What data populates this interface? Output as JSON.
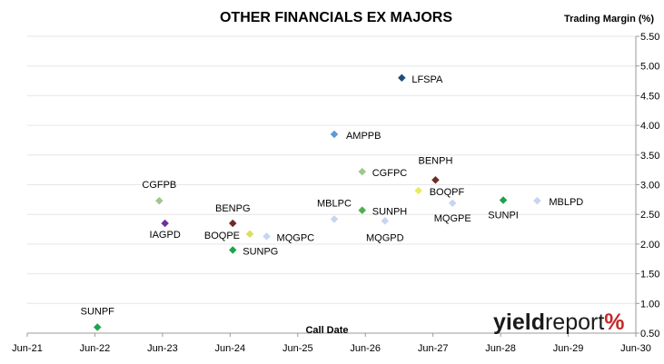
{
  "chart_data": {
    "type": "scatter",
    "title": "OTHER FINANCIALS EX MAJORS",
    "ylabel": "Trading Margin (%)",
    "xlabel": "Call Date",
    "x_ticks": [
      "Jun-21",
      "Jun-22",
      "Jun-23",
      "Jun-24",
      "Jun-25",
      "Jun-26",
      "Jun-27",
      "Jun-28",
      "Jun-29",
      "Jun-30"
    ],
    "xlim": [
      "Jun-21",
      "Jun-30"
    ],
    "ylim": [
      0.5,
      5.5
    ],
    "y_ticks": [
      "0.50",
      "1.00",
      "1.50",
      "2.00",
      "2.50",
      "3.00",
      "3.50",
      "4.00",
      "4.50",
      "5.00",
      "5.50"
    ],
    "y_axis_side": "right",
    "grid": "horizontal",
    "points": [
      {
        "label": "SUNPF",
        "x": "2022-06-15",
        "y": 0.6,
        "color": "#1fa34a"
      },
      {
        "label": "CGFPB",
        "x": "2023-05-15",
        "y": 2.73,
        "color": "#9cc98d"
      },
      {
        "label": "IAGPD",
        "x": "2023-06-15",
        "y": 2.35,
        "color": "#7030a0"
      },
      {
        "label": "BENPG",
        "x": "2024-06-15",
        "y": 2.35,
        "color": "#6b2d24"
      },
      {
        "label": "BOQPE",
        "x": "2024-09-15",
        "y": 2.17,
        "color": "#dede5a"
      },
      {
        "label": "SUNPG",
        "x": "2024-06-15",
        "y": 1.9,
        "color": "#1fa34a"
      },
      {
        "label": "MQGPC",
        "x": "2024-12-15",
        "y": 2.13,
        "color": "#c5d6ef"
      },
      {
        "label": "MBLPC",
        "x": "2025-12-15",
        "y": 2.42,
        "color": "#c5d6ef"
      },
      {
        "label": "AMPPB",
        "x": "2025-12-15",
        "y": 3.85,
        "color": "#5b9bd5"
      },
      {
        "label": "CGFPC",
        "x": "2026-05-15",
        "y": 3.22,
        "color": "#9cc98d"
      },
      {
        "label": "SUNPH",
        "x": "2026-05-15",
        "y": 2.57,
        "color": "#4caf50"
      },
      {
        "label": "MQGPD",
        "x": "2026-09-15",
        "y": 2.39,
        "color": "#c5d6ef"
      },
      {
        "label": "LFSPA",
        "x": "2026-12-15",
        "y": 4.8,
        "color": "#1f4e79"
      },
      {
        "label": "BENPH",
        "x": "2027-06-15",
        "y": 3.08,
        "color": "#6b2d24"
      },
      {
        "label": "BOQPF",
        "x": "2027-03-15",
        "y": 2.9,
        "color": "#ecec5a"
      },
      {
        "label": "MQGPE",
        "x": "2027-09-15",
        "y": 2.69,
        "color": "#c5d6ef"
      },
      {
        "label": "SUNPI",
        "x": "2028-06-15",
        "y": 2.74,
        "color": "#1fa34a"
      },
      {
        "label": "MBLPD",
        "x": "2028-12-15",
        "y": 2.73,
        "color": "#c5d6ef"
      }
    ]
  },
  "logo": {
    "text_a": "yield",
    "text_b": "report",
    "symbol": "%"
  }
}
